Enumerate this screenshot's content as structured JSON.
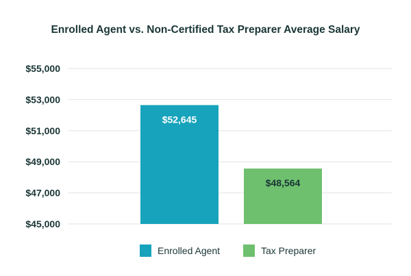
{
  "chart_data": {
    "type": "bar",
    "title": "Enrolled Agent vs. Non-Certified Tax Preparer Average Salary",
    "categories": [
      "Enrolled Agent",
      "Tax Preparer"
    ],
    "values": [
      52645,
      48564
    ],
    "data_labels": [
      "$52,645",
      "$48,564"
    ],
    "colors": [
      "#16a3bb",
      "#6ec06f"
    ],
    "label_colors": [
      "#ffffff",
      "#1a3535"
    ],
    "ylim": [
      45000,
      55000
    ],
    "yticks": [
      45000,
      47000,
      49000,
      51000,
      53000,
      55000
    ],
    "ytick_labels": [
      "$45,000",
      "$47,000",
      "$49,000",
      "$51,000",
      "$53,000",
      "$55,000"
    ],
    "grid": true,
    "legend": {
      "position": "bottom",
      "entries": [
        "Enrolled Agent",
        "Tax Preparer"
      ]
    }
  }
}
